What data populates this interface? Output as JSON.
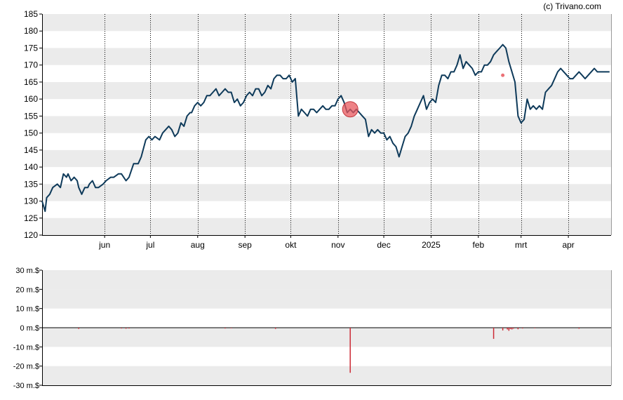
{
  "colors": {
    "line": "#0e3a5a",
    "band": "#ebebeb",
    "marker": "#e8585e",
    "volume": "#cc2a35",
    "axis": "#000000",
    "grid": "#000000"
  },
  "chart_data": [
    {
      "type": "line",
      "watermark": "(c) Trivano.com",
      "x_labels": [
        {
          "label": "jun",
          "day": 41
        },
        {
          "label": "jul",
          "day": 71
        },
        {
          "label": "aug",
          "day": 102
        },
        {
          "label": "sep",
          "day": 133
        },
        {
          "label": "okt",
          "day": 163
        },
        {
          "label": "nov",
          "day": 194
        },
        {
          "label": "dec",
          "day": 224
        },
        {
          "label": "2025",
          "day": 255
        },
        {
          "label": "feb",
          "day": 286
        },
        {
          "label": "mrt",
          "day": 314
        },
        {
          "label": "apr",
          "day": 345
        }
      ],
      "xlim_days": [
        0,
        373
      ],
      "ylim": [
        120,
        185
      ],
      "yticks": [
        120,
        125,
        130,
        135,
        140,
        145,
        150,
        155,
        160,
        165,
        170,
        175,
        180,
        185
      ],
      "grid": "vertical dotted at month starts, alternating horizontal bands",
      "series": [
        {
          "day": [
            0,
            2,
            3,
            5,
            7,
            10,
            12,
            14,
            16,
            17,
            19,
            21,
            23,
            24,
            26,
            28,
            30,
            31,
            33,
            35,
            37,
            40,
            42,
            45,
            47,
            50,
            52,
            55,
            57,
            60,
            63,
            65,
            68,
            70,
            72,
            74,
            77,
            79,
            81,
            83,
            85,
            87,
            89,
            91,
            93,
            95,
            97,
            98,
            100,
            102,
            104,
            106,
            108,
            110,
            112,
            114,
            116,
            118,
            120,
            122,
            124,
            126,
            128,
            130,
            132,
            134,
            136,
            138,
            140,
            142,
            144,
            146,
            148,
            150,
            152,
            154,
            156,
            158,
            160,
            162,
            164,
            166,
            168,
            170,
            172,
            174,
            176,
            178,
            180,
            182,
            184,
            186,
            188,
            190,
            192,
            194,
            196,
            198,
            200,
            202,
            204,
            206,
            208,
            210,
            212,
            214,
            216,
            218,
            220,
            222,
            224,
            226,
            228,
            230,
            232,
            234,
            236,
            238,
            240,
            242,
            244,
            246,
            248,
            250,
            252,
            254,
            256,
            258,
            260,
            262,
            264,
            266,
            268,
            270,
            272,
            274,
            276,
            278,
            280,
            282,
            284,
            286,
            288,
            290,
            292,
            294,
            296,
            298,
            300,
            302,
            304,
            306,
            308,
            310,
            312,
            314,
            316,
            318,
            320,
            322,
            324,
            326,
            328,
            330,
            332,
            334,
            336,
            338,
            340,
            342,
            344,
            346,
            348,
            350,
            352,
            354,
            356,
            358,
            360,
            362,
            364,
            366,
            368,
            370,
            372
          ],
          "values": [
            130,
            127,
            131,
            132,
            134,
            135,
            134,
            138,
            137,
            138,
            136,
            137,
            136,
            134,
            132,
            134,
            134,
            135,
            136,
            134,
            134,
            135,
            136,
            137,
            137,
            138,
            138,
            136,
            137,
            141,
            141,
            143,
            148,
            149,
            148,
            149,
            148,
            150,
            151,
            152,
            151,
            149,
            150,
            153,
            152,
            155,
            156,
            156,
            158,
            159,
            158,
            159,
            161,
            161,
            162,
            163,
            161,
            162,
            163,
            162,
            162,
            159,
            160,
            158,
            159,
            161,
            162,
            161,
            163,
            163,
            161,
            162,
            164,
            163,
            166,
            167,
            167,
            166,
            166,
            167,
            165,
            166,
            155,
            157,
            156,
            155,
            157,
            157,
            156,
            157,
            158,
            157,
            157,
            158,
            158,
            160,
            161,
            159,
            156,
            157,
            156,
            157,
            156,
            155,
            154,
            149,
            151,
            150,
            151,
            150,
            150,
            148,
            149,
            147,
            146,
            143,
            146,
            149,
            150,
            152,
            155,
            157,
            159,
            161,
            157,
            159,
            160,
            159,
            164,
            167,
            167,
            166,
            168,
            168,
            170,
            173,
            169,
            171,
            170,
            169,
            167,
            168,
            168,
            170,
            170,
            171,
            173,
            174,
            175,
            176,
            175,
            171,
            168,
            165,
            155,
            153,
            154,
            160,
            157,
            158,
            157,
            158,
            157,
            162,
            163,
            164,
            166,
            168,
            169,
            168,
            167,
            166,
            166,
            167,
            168,
            167,
            166,
            167,
            168,
            169,
            168,
            168,
            168,
            168,
            168
          ]
        }
      ]
    },
    {
      "type": "bar",
      "unit_suffix": " m.$",
      "ylim": [
        -30,
        30
      ],
      "yticks": [
        30,
        20,
        10,
        0,
        -10,
        -20,
        -30
      ],
      "ytick_labels": [
        "30 m.$",
        "20 m.$",
        "10 m.$",
        "0 m.$",
        "-10 m.$",
        "-20 m.$",
        "-30 m.$"
      ],
      "series": [
        {
          "day": [
            24,
            52,
            55,
            57,
            120,
            124,
            153,
            202,
            296,
            302,
            305,
            306,
            307,
            308,
            309,
            312,
            315,
            323,
            352
          ],
          "values": [
            -0.6,
            -0.4,
            -0.5,
            -0.4,
            -0.4,
            -0.3,
            -0.6,
            -23.5,
            -5.8,
            -1.4,
            -0.9,
            -1.6,
            -0.7,
            -0.9,
            -0.5,
            -0.8,
            -0.4,
            -0.3,
            -0.5
          ]
        }
      ]
    }
  ]
}
